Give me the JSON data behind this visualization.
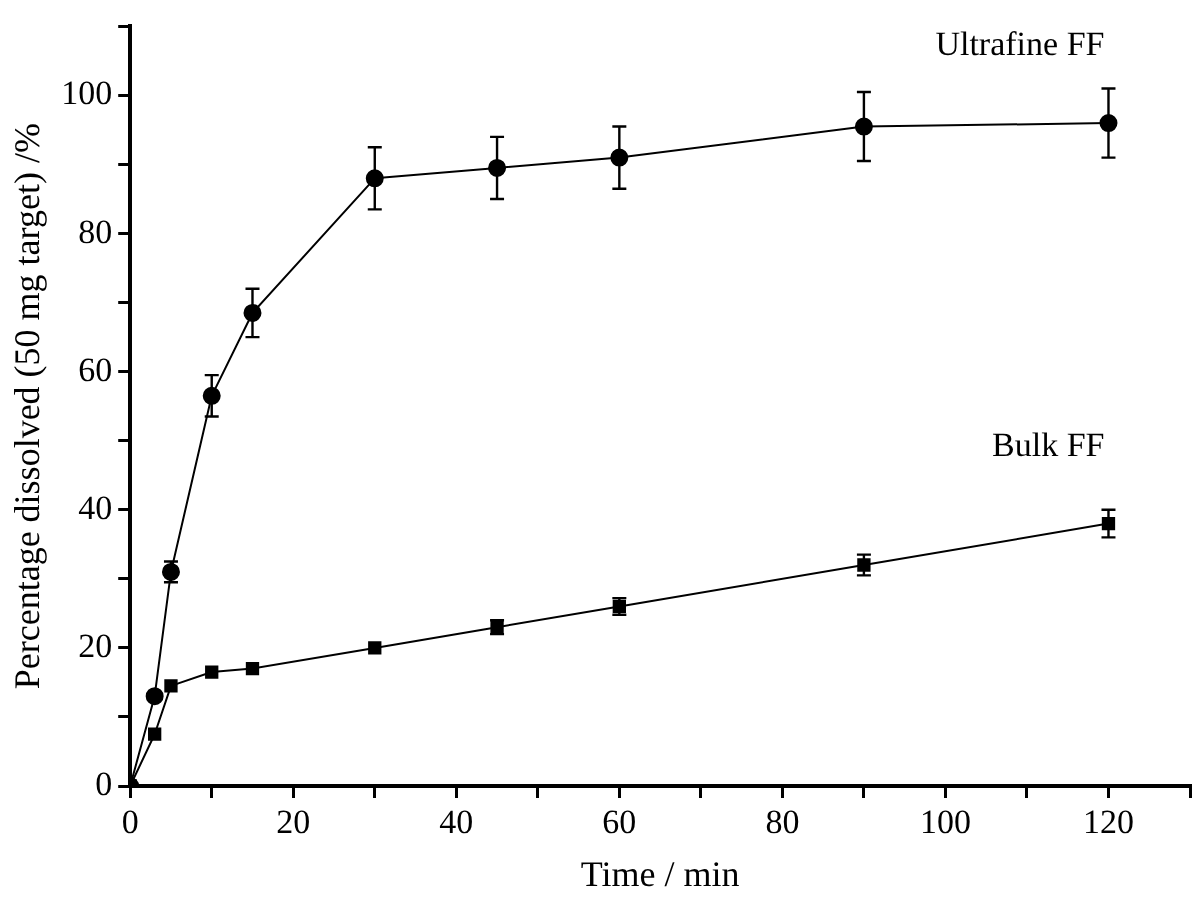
{
  "chart_data": {
    "type": "line",
    "xlabel": "Time / min",
    "ylabel": "Percentage dissolved (50 mg target) /%",
    "xlim": [
      0,
      130
    ],
    "xticks": [
      0,
      {
        "value": 10,
        "label": null
      },
      20,
      {
        "value": 30,
        "label": null
      },
      40,
      {
        "value": 50,
        "label": null
      },
      60,
      {
        "value": 70,
        "label": null
      },
      80,
      {
        "value": 90,
        "label": null
      },
      100,
      {
        "value": 110,
        "label": null
      },
      120,
      {
        "value": 130,
        "label": null
      }
    ],
    "ylim": [
      0,
      110
    ],
    "yticks": [
      0,
      {
        "value": 10,
        "label": null
      },
      20,
      {
        "value": 30,
        "label": null
      },
      40,
      {
        "value": 50,
        "label": null
      },
      60,
      {
        "value": 70,
        "label": null
      },
      80,
      {
        "value": 90,
        "label": null
      },
      100,
      {
        "value": 110,
        "label": null
      }
    ],
    "grid": false,
    "legend": false,
    "line_style": "solid",
    "series": [
      {
        "name": "Ultrafine FF",
        "color": "#000000",
        "marker": "circle",
        "x": [
          0,
          3,
          5,
          10,
          15,
          30,
          45,
          60,
          90,
          120
        ],
        "values": [
          0,
          13,
          31,
          56.5,
          68.5,
          88,
          89.5,
          91,
          95.5,
          96
        ],
        "errors": [
          null,
          null,
          1.5,
          3,
          3.5,
          4.5,
          4.5,
          4.5,
          5,
          5
        ]
      },
      {
        "name": "Bulk FF",
        "color": "#000000",
        "marker": "square",
        "x": [
          0,
          3,
          5,
          10,
          15,
          30,
          45,
          60,
          90,
          120
        ],
        "values": [
          0,
          7.5,
          14.5,
          16.5,
          17,
          20,
          23,
          26,
          32,
          38
        ],
        "errors": [
          null,
          null,
          null,
          null,
          null,
          null,
          1,
          1.2,
          1.5,
          2
        ]
      }
    ]
  }
}
